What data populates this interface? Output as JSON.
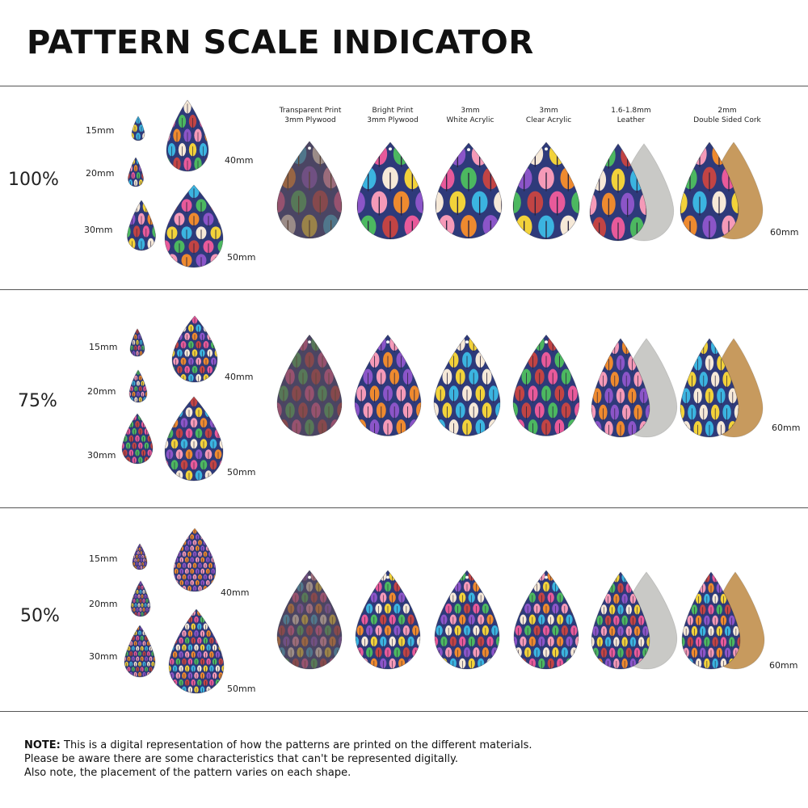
{
  "title": "PATTERN SCALE INDICATOR",
  "materials": [
    [
      "Transparent Print",
      "3mm Plywood"
    ],
    [
      "Bright Print",
      "3mm Plywood"
    ],
    [
      "3mm",
      "White Acrylic"
    ],
    [
      "3mm",
      "Clear Acrylic"
    ],
    [
      "1.6-1.8mm",
      "Leather"
    ],
    [
      "2mm",
      "Double Sided Cork"
    ]
  ],
  "sections": [
    {
      "scale": "100%",
      "sizes": [
        "15mm",
        "20mm",
        "30mm",
        "40mm",
        "50mm"
      ],
      "large_size": "60mm"
    },
    {
      "scale": "75%",
      "sizes": [
        "15mm",
        "20mm",
        "30mm",
        "40mm",
        "50mm"
      ],
      "large_size": "60mm"
    },
    {
      "scale": "50%",
      "sizes": [
        "15mm",
        "20mm",
        "30mm",
        "40mm",
        "50mm"
      ],
      "large_size": "60mm"
    }
  ],
  "note": {
    "label": "NOTE:",
    "line1": "This is a digital representation of how the patterns are printed on the different materials.",
    "line2": "Please be aware there are some characteristics that can't be represented digitally.",
    "line3": "Also note, the placement of the pattern varies on each shape."
  },
  "colors": {
    "pattern_bg": "#2e3a7a",
    "tree_colors": [
      "#f2d23a",
      "#e85a9a",
      "#f59ab8",
      "#3bb4e0",
      "#4cb860",
      "#ee8a2f",
      "#f6e9d8",
      "#c24444",
      "#8b55c8"
    ],
    "wood": "#6e5548",
    "leather_back": "#c9c9c6",
    "cork_back": "#c79a5e"
  }
}
